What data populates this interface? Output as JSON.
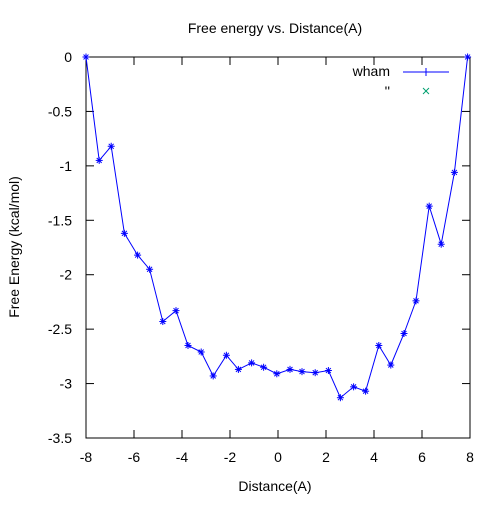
{
  "chart_data": {
    "type": "line",
    "title": "Free energy vs. Distance(A)",
    "xlabel": "Distance(A)",
    "ylabel": "Free Energy (kcal/mol)",
    "xlim": [
      -8,
      8
    ],
    "ylim": [
      -3.5,
      0
    ],
    "xticks": [
      "-8",
      "-6",
      "-4",
      "-2",
      "0",
      "2",
      "4",
      "6",
      "8"
    ],
    "yticks": [
      "0",
      "-0.5",
      "-1",
      "-1.5",
      "-2",
      "-2.5",
      "-3",
      "-3.5"
    ],
    "grid": false,
    "legend_position": "top-right",
    "series": [
      {
        "name": "wham",
        "color": "#0000ff",
        "marker": "star",
        "x": [
          -8.0,
          -7.45,
          -6.95,
          -6.4,
          -5.85,
          -5.35,
          -4.8,
          -4.25,
          -3.75,
          -3.2,
          -2.7,
          -2.15,
          -1.65,
          -1.1,
          -0.6,
          -0.05,
          0.5,
          1.0,
          1.55,
          2.1,
          2.6,
          3.15,
          3.65,
          4.2,
          4.7,
          5.25,
          5.75,
          6.3,
          6.8,
          7.35,
          7.9
        ],
        "y": [
          0.0,
          -0.95,
          -0.82,
          -1.62,
          -1.82,
          -1.95,
          -2.43,
          -2.33,
          -2.65,
          -2.71,
          -2.93,
          -2.74,
          -2.87,
          -2.81,
          -2.85,
          -2.91,
          -2.87,
          -2.89,
          -2.9,
          -2.88,
          -3.13,
          -3.03,
          -3.07,
          -2.65,
          -2.83,
          -2.54,
          -2.24,
          -1.37,
          -1.72,
          -1.06,
          0.0
        ]
      },
      {
        "name": "''",
        "color": "#00a070",
        "marker": "x"
      }
    ]
  }
}
